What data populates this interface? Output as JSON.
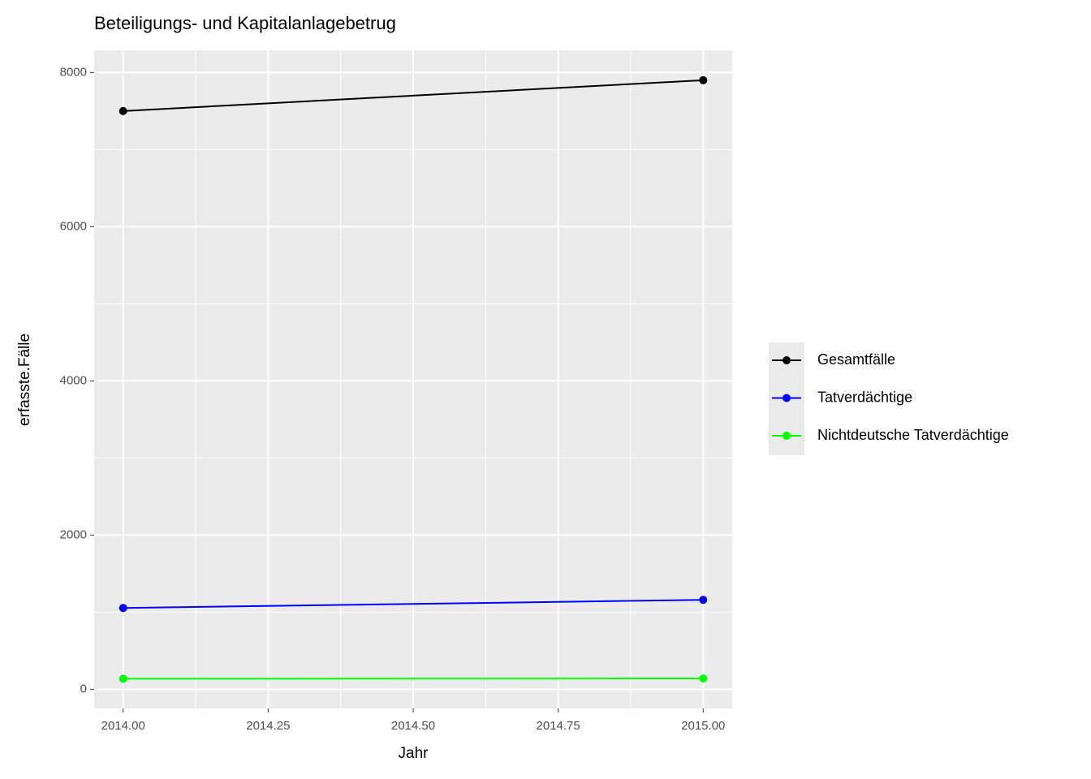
{
  "chart_data": {
    "type": "line",
    "title": "Beteiligungs- und Kapitalanlagebetrug",
    "x_label": "Jahr",
    "y_label": "erfasste.Fälle",
    "x": [
      2014,
      2015
    ],
    "series": [
      {
        "name": "Gesamtfälle",
        "color": "#000000",
        "values": [
          7500,
          7900
        ]
      },
      {
        "name": "Tatverdächtige",
        "color": "#0000ff",
        "values": [
          1055,
          1160
        ]
      },
      {
        "name": "Nichtdeutsche Tatverdächtige",
        "color": "#00ff00",
        "values": [
          137,
          140
        ]
      }
    ],
    "xlim": [
      2013.95,
      2015.05
    ],
    "ylim": [
      -248,
      8288
    ],
    "xticks": [
      {
        "value": 2014,
        "label": "2014.00"
      },
      {
        "value": 2014.25,
        "label": "2014.25"
      },
      {
        "value": 2014.5,
        "label": "2014.50"
      },
      {
        "value": 2014.75,
        "label": "2014.75"
      },
      {
        "value": 2015,
        "label": "2015.00"
      }
    ],
    "yticks": [
      0,
      2000,
      4000,
      6000,
      8000
    ],
    "grid": true,
    "minor_grid": true,
    "legend_position": "right"
  }
}
